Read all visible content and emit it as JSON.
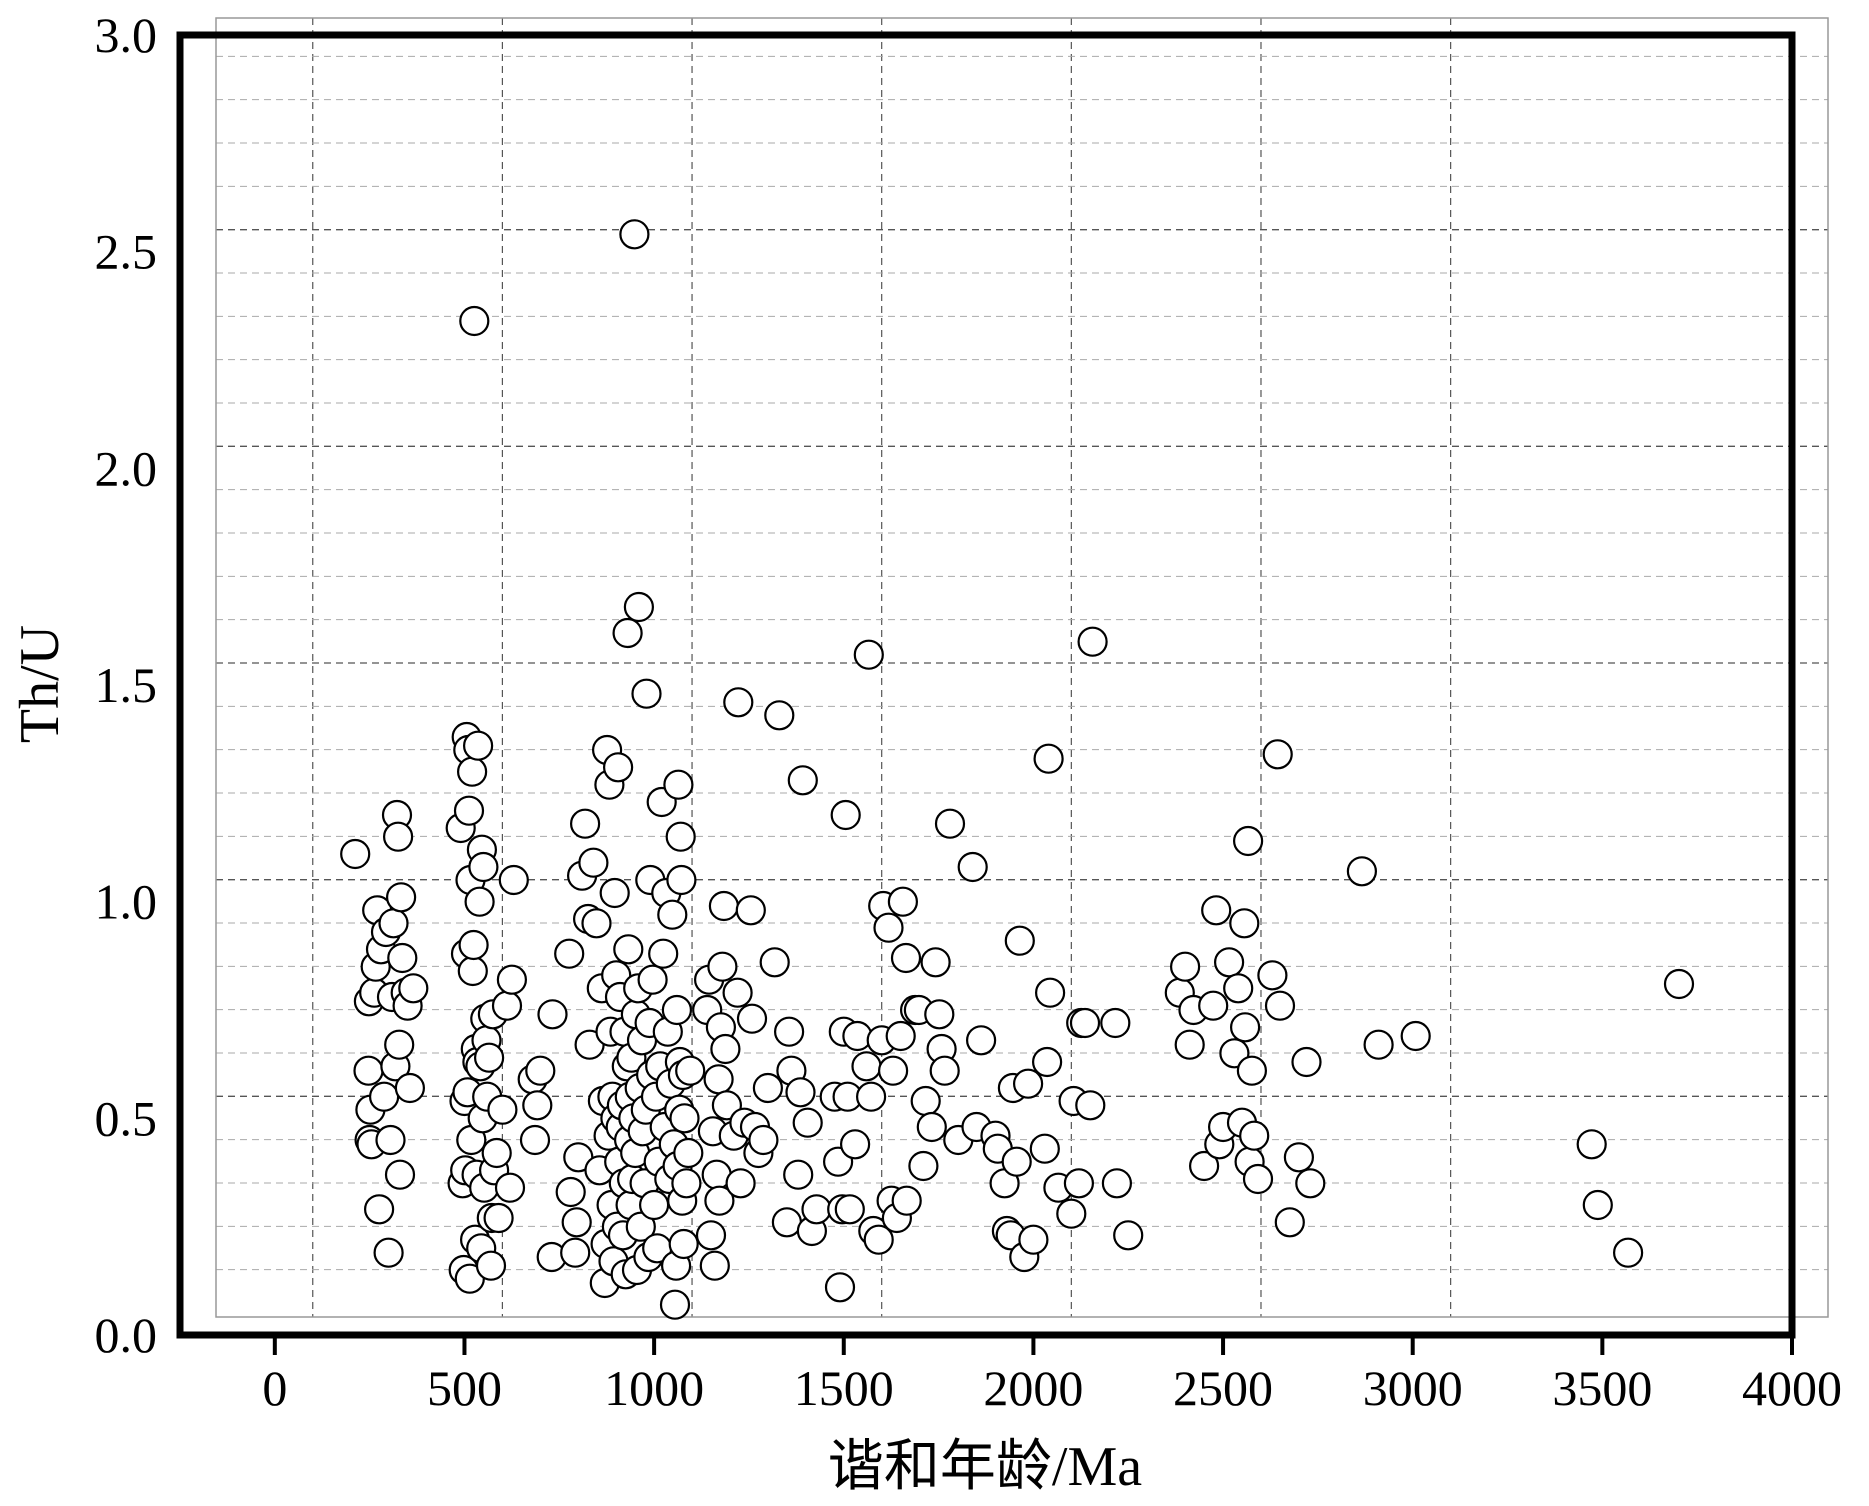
{
  "chart_data": {
    "type": "scatter",
    "title": "",
    "xlabel": "谐和年龄/Ma",
    "ylabel": "Th/U",
    "xlim": [
      -250,
      4000
    ],
    "ylim": [
      0,
      3.0
    ],
    "x_ticks": [
      "0",
      "500",
      "1000",
      "1500",
      "2000",
      "2500",
      "3000",
      "3500",
      "4000"
    ],
    "x_tick_values": [
      0,
      500,
      1000,
      1500,
      2000,
      2500,
      3000,
      3500,
      4000
    ],
    "y_ticks": [
      "0.0",
      "0.5",
      "1.0",
      "1.5",
      "2.0",
      "2.5",
      "3.0"
    ],
    "y_tick_values": [
      0,
      0.5,
      1.0,
      1.5,
      2.0,
      2.5,
      3.0
    ],
    "grid": true,
    "marker": "open-circle",
    "marker_color": "#000000",
    "series": [
      {
        "points": [
          [
            212,
            1.11
          ],
          [
            247,
            0.61
          ],
          [
            248,
            0.77
          ],
          [
            250,
            0.45
          ],
          [
            252,
            0.52
          ],
          [
            255,
            0.44
          ],
          [
            262,
            0.79
          ],
          [
            266,
            0.85
          ],
          [
            270,
            0.98
          ],
          [
            275,
            0.29
          ],
          [
            280,
            0.89
          ],
          [
            288,
            0.55
          ],
          [
            293,
            0.93
          ],
          [
            300,
            0.19
          ],
          [
            305,
            0.45
          ],
          [
            309,
            0.78
          ],
          [
            313,
            0.95
          ],
          [
            318,
            0.62
          ],
          [
            322,
            1.2
          ],
          [
            325,
            1.15
          ],
          [
            328,
            0.67
          ],
          [
            330,
            0.37
          ],
          [
            333,
            1.01
          ],
          [
            336,
            0.87
          ],
          [
            345,
            0.79
          ],
          [
            350,
            0.76
          ],
          [
            356,
            0.57
          ],
          [
            365,
            0.8
          ],
          [
            490,
            1.17
          ],
          [
            495,
            0.35
          ],
          [
            498,
            0.15
          ],
          [
            500,
            0.54
          ],
          [
            502,
            0.38
          ],
          [
            504,
            0.88
          ],
          [
            506,
            1.38
          ],
          [
            508,
            0.56
          ],
          [
            510,
            1.35
          ],
          [
            512,
            1.21
          ],
          [
            514,
            0.13
          ],
          [
            516,
            1.05
          ],
          [
            518,
            0.45
          ],
          [
            520,
            1.3
          ],
          [
            522,
            0.84
          ],
          [
            524,
            0.9
          ],
          [
            526,
            2.34
          ],
          [
            528,
            0.22
          ],
          [
            530,
            0.66
          ],
          [
            532,
            0.37
          ],
          [
            534,
            0.63
          ],
          [
            536,
            1.36
          ],
          [
            540,
            1.0
          ],
          [
            542,
            0.62
          ],
          [
            544,
            0.2
          ],
          [
            546,
            1.12
          ],
          [
            548,
            0.5
          ],
          [
            550,
            1.08
          ],
          [
            552,
            0.34
          ],
          [
            555,
            0.73
          ],
          [
            558,
            0.68
          ],
          [
            560,
            0.55
          ],
          [
            565,
            0.64
          ],
          [
            570,
            0.16
          ],
          [
            572,
            0.27
          ],
          [
            575,
            0.74
          ],
          [
            578,
            0.38
          ],
          [
            585,
            0.42
          ],
          [
            590,
            0.27
          ],
          [
            600,
            0.52
          ],
          [
            612,
            0.76
          ],
          [
            620,
            0.34
          ],
          [
            625,
            0.82
          ],
          [
            630,
            1.05
          ],
          [
            680,
            0.59
          ],
          [
            686,
            0.45
          ],
          [
            692,
            0.53
          ],
          [
            700,
            0.61
          ],
          [
            730,
            0.18
          ],
          [
            732,
            0.74
          ],
          [
            776,
            0.88
          ],
          [
            780,
            0.33
          ],
          [
            792,
            0.19
          ],
          [
            796,
            0.26
          ],
          [
            800,
            0.41
          ],
          [
            810,
            1.06
          ],
          [
            818,
            1.18
          ],
          [
            826,
            0.96
          ],
          [
            830,
            0.67
          ],
          [
            840,
            1.09
          ],
          [
            848,
            0.95
          ],
          [
            856,
            0.38
          ],
          [
            862,
            0.8
          ],
          [
            865,
            0.54
          ],
          [
            870,
            0.12
          ],
          [
            872,
            0.21
          ],
          [
            876,
            1.35
          ],
          [
            880,
            0.46
          ],
          [
            882,
            1.27
          ],
          [
            885,
            0.7
          ],
          [
            888,
            0.3
          ],
          [
            890,
            0.55
          ],
          [
            893,
            0.17
          ],
          [
            896,
            1.02
          ],
          [
            898,
            0.5
          ],
          [
            900,
            0.83
          ],
          [
            902,
            0.25
          ],
          [
            905,
            1.31
          ],
          [
            908,
            0.4
          ],
          [
            910,
            0.78
          ],
          [
            912,
            0.48
          ],
          [
            915,
            0.53
          ],
          [
            918,
            0.23
          ],
          [
            920,
            0.35
          ],
          [
            922,
            0.7
          ],
          [
            925,
            0.14
          ],
          [
            928,
            0.62
          ],
          [
            930,
            1.62
          ],
          [
            932,
            0.89
          ],
          [
            934,
            0.45
          ],
          [
            936,
            0.55
          ],
          [
            938,
            0.3
          ],
          [
            940,
            0.64
          ],
          [
            942,
            0.36
          ],
          [
            945,
            0.5
          ],
          [
            948,
            2.54
          ],
          [
            950,
            0.42
          ],
          [
            952,
            0.74
          ],
          [
            955,
            0.15
          ],
          [
            958,
            0.8
          ],
          [
            960,
            1.68
          ],
          [
            962,
            0.57
          ],
          [
            965,
            0.25
          ],
          [
            968,
            0.68
          ],
          [
            970,
            0.47
          ],
          [
            975,
            0.35
          ],
          [
            978,
            0.52
          ],
          [
            980,
            1.48
          ],
          [
            985,
            0.18
          ],
          [
            988,
            0.72
          ],
          [
            990,
            1.05
          ],
          [
            992,
            0.6
          ],
          [
            996,
            0.82
          ],
          [
            1000,
            0.3
          ],
          [
            1005,
            0.55
          ],
          [
            1008,
            0.2
          ],
          [
            1012,
            0.4
          ],
          [
            1016,
            0.62
          ],
          [
            1020,
            1.23
          ],
          [
            1024,
            0.88
          ],
          [
            1028,
            0.48
          ],
          [
            1032,
            1.02
          ],
          [
            1036,
            0.7
          ],
          [
            1040,
            0.36
          ],
          [
            1044,
            0.58
          ],
          [
            1048,
            0.97
          ],
          [
            1052,
            0.44
          ],
          [
            1055,
            0.07
          ],
          [
            1058,
            0.16
          ],
          [
            1060,
            0.75
          ],
          [
            1062,
            0.39
          ],
          [
            1064,
            1.27
          ],
          [
            1066,
            0.52
          ],
          [
            1068,
            0.63
          ],
          [
            1070,
            1.15
          ],
          [
            1072,
            1.05
          ],
          [
            1074,
            0.31
          ],
          [
            1076,
            0.6
          ],
          [
            1078,
            0.21
          ],
          [
            1080,
            0.5
          ],
          [
            1085,
            0.35
          ],
          [
            1090,
            0.42
          ],
          [
            1095,
            0.61
          ],
          [
            1140,
            0.75
          ],
          [
            1145,
            0.82
          ],
          [
            1150,
            0.23
          ],
          [
            1155,
            0.47
          ],
          [
            1160,
            0.16
          ],
          [
            1165,
            0.37
          ],
          [
            1170,
            0.59
          ],
          [
            1172,
            0.31
          ],
          [
            1176,
            0.71
          ],
          [
            1180,
            0.85
          ],
          [
            1184,
            0.99
          ],
          [
            1188,
            0.66
          ],
          [
            1192,
            0.53
          ],
          [
            1210,
            0.46
          ],
          [
            1220,
            0.79
          ],
          [
            1222,
            1.46
          ],
          [
            1228,
            0.35
          ],
          [
            1238,
            0.49
          ],
          [
            1255,
            0.98
          ],
          [
            1258,
            0.73
          ],
          [
            1266,
            0.48
          ],
          [
            1275,
            0.42
          ],
          [
            1288,
            0.45
          ],
          [
            1300,
            0.57
          ],
          [
            1318,
            0.86
          ],
          [
            1330,
            1.43
          ],
          [
            1350,
            0.26
          ],
          [
            1356,
            0.7
          ],
          [
            1362,
            0.61
          ],
          [
            1380,
            0.37
          ],
          [
            1386,
            0.56
          ],
          [
            1392,
            1.28
          ],
          [
            1405,
            0.49
          ],
          [
            1416,
            0.24
          ],
          [
            1428,
            0.29
          ],
          [
            1476,
            0.55
          ],
          [
            1485,
            0.4
          ],
          [
            1490,
            0.11
          ],
          [
            1496,
            0.29
          ],
          [
            1500,
            0.7
          ],
          [
            1505,
            1.2
          ],
          [
            1510,
            0.55
          ],
          [
            1516,
            0.29
          ],
          [
            1530,
            0.44
          ],
          [
            1536,
            0.69
          ],
          [
            1560,
            0.62
          ],
          [
            1566,
            1.57
          ],
          [
            1572,
            0.55
          ],
          [
            1578,
            0.24
          ],
          [
            1592,
            0.22
          ],
          [
            1600,
            0.68
          ],
          [
            1604,
            0.99
          ],
          [
            1618,
            0.94
          ],
          [
            1626,
            0.31
          ],
          [
            1630,
            0.61
          ],
          [
            1640,
            0.27
          ],
          [
            1650,
            0.69
          ],
          [
            1656,
            1.0
          ],
          [
            1664,
            0.87
          ],
          [
            1666,
            0.31
          ],
          [
            1688,
            0.75
          ],
          [
            1698,
            0.75
          ],
          [
            1710,
            0.39
          ],
          [
            1716,
            0.54
          ],
          [
            1732,
            0.48
          ],
          [
            1742,
            0.86
          ],
          [
            1752,
            0.74
          ],
          [
            1758,
            0.66
          ],
          [
            1766,
            0.61
          ],
          [
            1780,
            1.18
          ],
          [
            1802,
            0.45
          ],
          [
            1840,
            1.08
          ],
          [
            1850,
            0.48
          ],
          [
            1862,
            0.68
          ],
          [
            1900,
            0.46
          ],
          [
            1906,
            0.43
          ],
          [
            1924,
            0.35
          ],
          [
            1930,
            0.24
          ],
          [
            1940,
            0.23
          ],
          [
            1946,
            0.57
          ],
          [
            1956,
            0.4
          ],
          [
            1964,
            0.91
          ],
          [
            1976,
            0.18
          ],
          [
            1986,
            0.58
          ],
          [
            2000,
            0.22
          ],
          [
            2030,
            0.43
          ],
          [
            2036,
            0.63
          ],
          [
            2040,
            1.33
          ],
          [
            2044,
            0.79
          ],
          [
            2066,
            0.34
          ],
          [
            2100,
            0.28
          ],
          [
            2106,
            0.54
          ],
          [
            2120,
            0.35
          ],
          [
            2126,
            0.72
          ],
          [
            2136,
            0.72
          ],
          [
            2150,
            0.53
          ],
          [
            2156,
            1.6
          ],
          [
            2216,
            0.72
          ],
          [
            2220,
            0.35
          ],
          [
            2250,
            0.23
          ],
          [
            2386,
            0.79
          ],
          [
            2400,
            0.85
          ],
          [
            2412,
            0.67
          ],
          [
            2422,
            0.75
          ],
          [
            2450,
            0.39
          ],
          [
            2474,
            0.76
          ],
          [
            2482,
            0.98
          ],
          [
            2490,
            0.44
          ],
          [
            2500,
            0.48
          ],
          [
            2516,
            0.86
          ],
          [
            2530,
            0.65
          ],
          [
            2540,
            0.8
          ],
          [
            2550,
            0.49
          ],
          [
            2556,
            0.95
          ],
          [
            2558,
            0.71
          ],
          [
            2566,
            1.14
          ],
          [
            2570,
            0.4
          ],
          [
            2576,
            0.61
          ],
          [
            2582,
            0.46
          ],
          [
            2592,
            0.36
          ],
          [
            2630,
            0.83
          ],
          [
            2644,
            1.34
          ],
          [
            2650,
            0.76
          ],
          [
            2676,
            0.26
          ],
          [
            2700,
            0.41
          ],
          [
            2720,
            0.63
          ],
          [
            2730,
            0.35
          ],
          [
            2866,
            1.07
          ],
          [
            2910,
            0.67
          ],
          [
            3008,
            0.69
          ],
          [
            3472,
            0.44
          ],
          [
            3488,
            0.3
          ],
          [
            3568,
            0.19
          ],
          [
            3702,
            0.81
          ]
        ]
      }
    ]
  }
}
